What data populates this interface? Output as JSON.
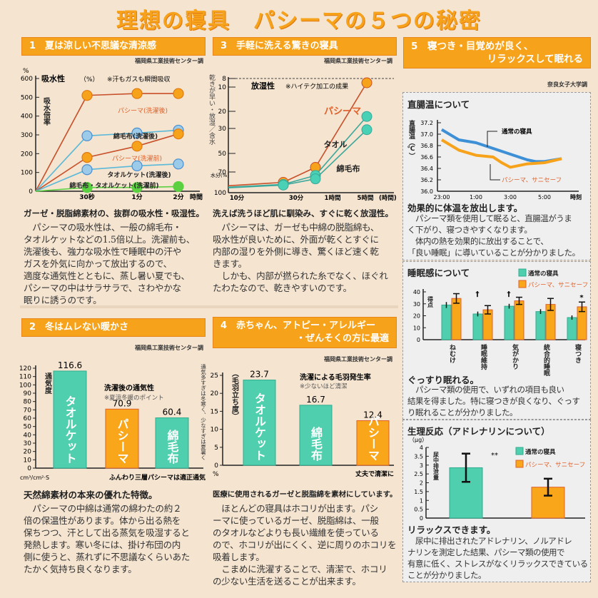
{
  "title": "理想の寝具　パシーマの５つの秘密",
  "colors": {
    "accent": "#f7a21b",
    "teal": "#4fcfae",
    "blue": "#3d8fd6",
    "orange_line": "#d0502a",
    "green": "#5bd040",
    "beige": "#f4e4d0"
  },
  "s1": {
    "header": "1　夏は涼しい不思議な清涼感",
    "source": "福岡県工業技術センター調",
    "caption": "ガーゼ・脱脂綿素材の、抜群の吸水性・吸湿性。",
    "body": [
      "　パシーマの吸水性は、一般の綿毛布・",
      "タオルケットなどの1.5倍以上。洗濯前も、",
      "洗濯後も、強力な吸水性で睡眠中の汗や",
      "ガスを外気に向かって放出するので、",
      "適度な通気性とともに、蒸し暑い夏でも、",
      "パシーマの中はサラサラで、さわやかな",
      "眠りに誘うのです。"
    ]
  },
  "s2": {
    "header": "2　冬はムレない暖かさ",
    "source": "福岡県工業技術センター調",
    "caption": "天然綿素材の本来の優れた特徴。",
    "body": [
      "　パシーマの中綿は通常の綿わたの約２",
      "倍の保温性があります。体から出る熱を",
      "保ちつつ、汗として出る蒸気を吸湿すると",
      "発熱します。寒い冬には、掛け布団の内",
      "側に使うと、蒸れずに不思議なくらいあた",
      "たかく気持ち良くなります。"
    ]
  },
  "s3": {
    "header": "3　手軽に洗える驚きの寝具",
    "source": "福岡県工業技術センター調",
    "caption": "洗えば洗うほど肌に馴染み、すぐに乾く放湿性。",
    "body": [
      "　パシーマは、ガーゼも中綿の脱脂綿も、",
      "吸水性が良いために、外面が乾くとすぐに",
      "内部の湿りを外側に導き、驚くほど速く乾",
      "きます。",
      "　しかも、内部が撚られた糸でなく、ほぐれ",
      "たわたなので、乾きやすいのです。"
    ]
  },
  "s4": {
    "header_line1": "4　赤ちゃん、アトピー・アレルギー",
    "header_line2": "・ぜんそくの方に最適",
    "source": "福岡県工業技術センター調",
    "caption": "医療に使用されるガーゼと脱脂綿を素材にしています。",
    "body": [
      "　ほとんどの寝具はホコリが出ます。パシ",
      "ーマに使っているガーゼ、脱脂綿は、一般",
      "のタオルなどよりも長い繊維を使っている",
      "ので、ホコリが出にくく、逆に周りのホコリを",
      "吸着します。",
      "　こまめに洗濯することで、清潔で、ホコリ",
      "の少ない生活を送ることが出来ます。"
    ]
  },
  "s5": {
    "header_line1": "5　寝つき・目覚めが良く、",
    "header_line2": "リラックスして眠れる",
    "source": "奈良女子大学調",
    "box1": {
      "title": "直腸温について",
      "caption": "効果的に体温を放出します。",
      "body": [
        "　パシーマ類を使用して眠ると、直腸温がうま",
        "く下がり、寝つきやすくなります。",
        "　体内の熱を効果的に放出することで、",
        "「良い睡眠」に導いていることが分かりました。"
      ]
    },
    "box2": {
      "title": "睡眠感について",
      "caption": "ぐっすり眠れる。",
      "body": [
        "　パシーマ類の使用で、いずれの項目も良い",
        "結果を得ました。特に寝つきが良くなり、ぐっす",
        "り眠れることが分かりました。"
      ]
    },
    "box3": {
      "title": "生理反応（アドレナリンについて）",
      "caption": "リラックスできます。",
      "body": [
        "　尿中に排出されたアドレナリン、ノルアドレ",
        "ナリンを測定した結果、パシーマ類の使用で",
        "有意に低く、ストレスがなくリラックスできている",
        "ことが分かりました。"
      ]
    }
  },
  "chart_data": [
    {
      "id": "absorb",
      "type": "line",
      "title": "吸水性",
      "title_unit": "（%）",
      "note": "※汗もガスも瞬間吸収",
      "ylabel": "吸水倍率",
      "yunit": "%",
      "xunit": "時間",
      "categories": [
        "0",
        "30秒",
        "1分",
        "2分"
      ],
      "xtick_labels": [
        "30秒",
        "1分",
        "2分"
      ],
      "ylim": [
        0,
        600
      ],
      "yticks": [
        0,
        100,
        200,
        300,
        400,
        500,
        600
      ],
      "series": [
        {
          "name": "パシーマ(洗濯後)",
          "values": [
            0,
            510,
            520,
            520
          ],
          "color": "#f7a21b",
          "line": "#c8502a"
        },
        {
          "name": "綿毛布(洗濯後)",
          "values": [
            0,
            295,
            310,
            325
          ],
          "color": "#9ccbe9",
          "line": "#5ab8d8"
        },
        {
          "name": "パシーマ(洗濯前)",
          "values": [
            0,
            180,
            240,
            305
          ],
          "color": "#f7a21b",
          "line": "#c8502a"
        },
        {
          "name": "タオルケット(洗濯後)",
          "values": [
            0,
            115,
            135,
            145
          ],
          "color": "#9ccbe9",
          "line": "#5ab8d8"
        },
        {
          "name": "綿毛布・タオルケット(洗濯前)",
          "values": [
            0,
            20,
            20,
            25
          ],
          "color": "#5bd040",
          "line": "#5bd040"
        }
      ]
    },
    {
      "id": "breath",
      "type": "bar",
      "title": "洗濯後の通気性",
      "note": "※夏涼冬暖のポイント",
      "ylabel": "通気度",
      "unit": "cm³/cm²·S",
      "side_note": "通気多すぎは冬寒く、少なすぎは夏暑く",
      "footer": "ふんわり三層パシーマは適正通気",
      "categories": [
        "タオルケット",
        "パシーマ",
        "綿毛布"
      ],
      "values": [
        116.6,
        70.9,
        60.4
      ],
      "value_labels": [
        "116.6",
        "70.9",
        "60.4"
      ],
      "colors": [
        "#4fcfae",
        "#f9a61a",
        "#4fcfae"
      ],
      "ylim": [
        0,
        120
      ],
      "yticks": [
        0,
        10,
        20,
        30,
        40,
        50,
        60,
        70,
        80,
        90,
        100,
        110,
        120
      ]
    },
    {
      "id": "dry",
      "type": "line",
      "title": "放湿性",
      "note": "※ハイテク加工の成果",
      "ylabel": "乾きが早い・放湿／含水",
      "yunit": "水分(%)",
      "xunit": "(時間)",
      "xtick_labels": [
        "10分",
        "30分",
        "1時間",
        "5時間"
      ],
      "yticks": [
        8,
        10,
        20,
        30,
        50,
        70,
        100
      ],
      "ylim": [
        100,
        8
      ],
      "series": [
        {
          "name": "パシーマ",
          "x": [
            "10分",
            "20分",
            "45分",
            "5時間"
          ],
          "values": [
            90,
            85,
            65,
            9
          ],
          "color": "#f7a21b",
          "line": "#c8502a"
        },
        {
          "name": "タオル",
          "x": [
            "10分",
            "20分",
            "45分",
            "5時間"
          ],
          "values": [
            92,
            88,
            75,
            23
          ],
          "color": "#48d1b5",
          "line": "#3aa89a"
        },
        {
          "name": "綿毛布",
          "x": [
            "10分",
            "20分",
            "45分",
            "5時間"
          ],
          "values": [
            93,
            89,
            80,
            31
          ],
          "color": "#48d1b5",
          "line": "#3aa89a"
        }
      ]
    },
    {
      "id": "lint",
      "type": "bar",
      "title": "洗濯による毛羽発生率",
      "note": "※少ないほど清潔",
      "ylabel": "（毛羽立ち度）",
      "unit": "%",
      "footer": "丈夫で清潔に",
      "categories": [
        "タオルケット",
        "綿毛布",
        "パシーマ"
      ],
      "values": [
        23.7,
        16.7,
        12.4
      ],
      "value_labels": [
        "23.7",
        "16.7",
        "12.4"
      ],
      "colors": [
        "#4fcfae",
        "#4fcfae",
        "#f9a61a"
      ],
      "ylim": [
        0,
        25
      ],
      "yticks": [
        0,
        5,
        10,
        15,
        20,
        25
      ]
    },
    {
      "id": "temp",
      "type": "line",
      "ylabel": "直腸温（℃）",
      "xunit": "時刻",
      "xtick_labels": [
        "23:00",
        "1:00",
        "3:00",
        "5:00"
      ],
      "ylim": [
        36.0,
        37.2
      ],
      "yticks": [
        "36.0",
        "36.2",
        "36.4",
        "36.6",
        "36.8",
        "37.0",
        "37.2"
      ],
      "series": [
        {
          "name": "通常の寝具",
          "x": [
            "23:00",
            "0:00",
            "1:00",
            "2:00",
            "3:00",
            "4:00",
            "4:30",
            "5:00",
            "6:00"
          ],
          "values": [
            37.08,
            36.9,
            36.85,
            36.75,
            36.65,
            36.55,
            36.52,
            36.52,
            36.57
          ],
          "color": "#3d8fd6"
        },
        {
          "name": "パシーマ、サニセーフ",
          "x": [
            "23:00",
            "0:00",
            "1:00",
            "2:00",
            "2:30",
            "3:00",
            "4:00",
            "5:00",
            "6:00"
          ],
          "values": [
            36.9,
            36.72,
            36.63,
            36.6,
            36.5,
            36.42,
            36.48,
            36.5,
            36.57
          ],
          "color": "#f7a21b"
        }
      ]
    },
    {
      "id": "sleep",
      "type": "bar",
      "ylabel": "得点",
      "categories": [
        "ねむけ",
        "睡眠維持",
        "気がかり",
        "統合的睡眠",
        "寝つき"
      ],
      "ylim": [
        0,
        40
      ],
      "yticks": [
        0,
        10,
        20,
        30,
        40
      ],
      "markers": [
        "",
        "†",
        "†",
        "",
        "*"
      ],
      "series": [
        {
          "name": "通常の寝具",
          "values": [
            29,
            21.5,
            28,
            23.5,
            18.5
          ],
          "errors": [
            2.5,
            2,
            2,
            2,
            1.8
          ],
          "color": "#4fcfae"
        },
        {
          "name": "パシーマ、サニセーフ",
          "values": [
            34.5,
            25,
            32.5,
            29.5,
            27.5
          ],
          "errors": [
            4,
            3.5,
            3,
            5,
            4
          ],
          "color": "#f9a61a"
        }
      ]
    },
    {
      "id": "adrenaline",
      "type": "bar",
      "unit": "（μg）",
      "ylabel": "尿中排泄量",
      "significance": "**",
      "ylim": [
        0,
        4
      ],
      "yticks": [
        "0",
        "0.5",
        "1",
        "1.5",
        "2",
        "2.5",
        "3",
        "3.5",
        "4"
      ],
      "series": [
        {
          "name": "通常の寝具",
          "values": [
            2.85
          ],
          "errors": [
            0.8
          ],
          "color": "#4fcfae"
        },
        {
          "name": "パシーマ、サニセーフ",
          "values": [
            1.75
          ],
          "errors": [
            0.48
          ],
          "color": "#f9a61a"
        }
      ]
    }
  ]
}
